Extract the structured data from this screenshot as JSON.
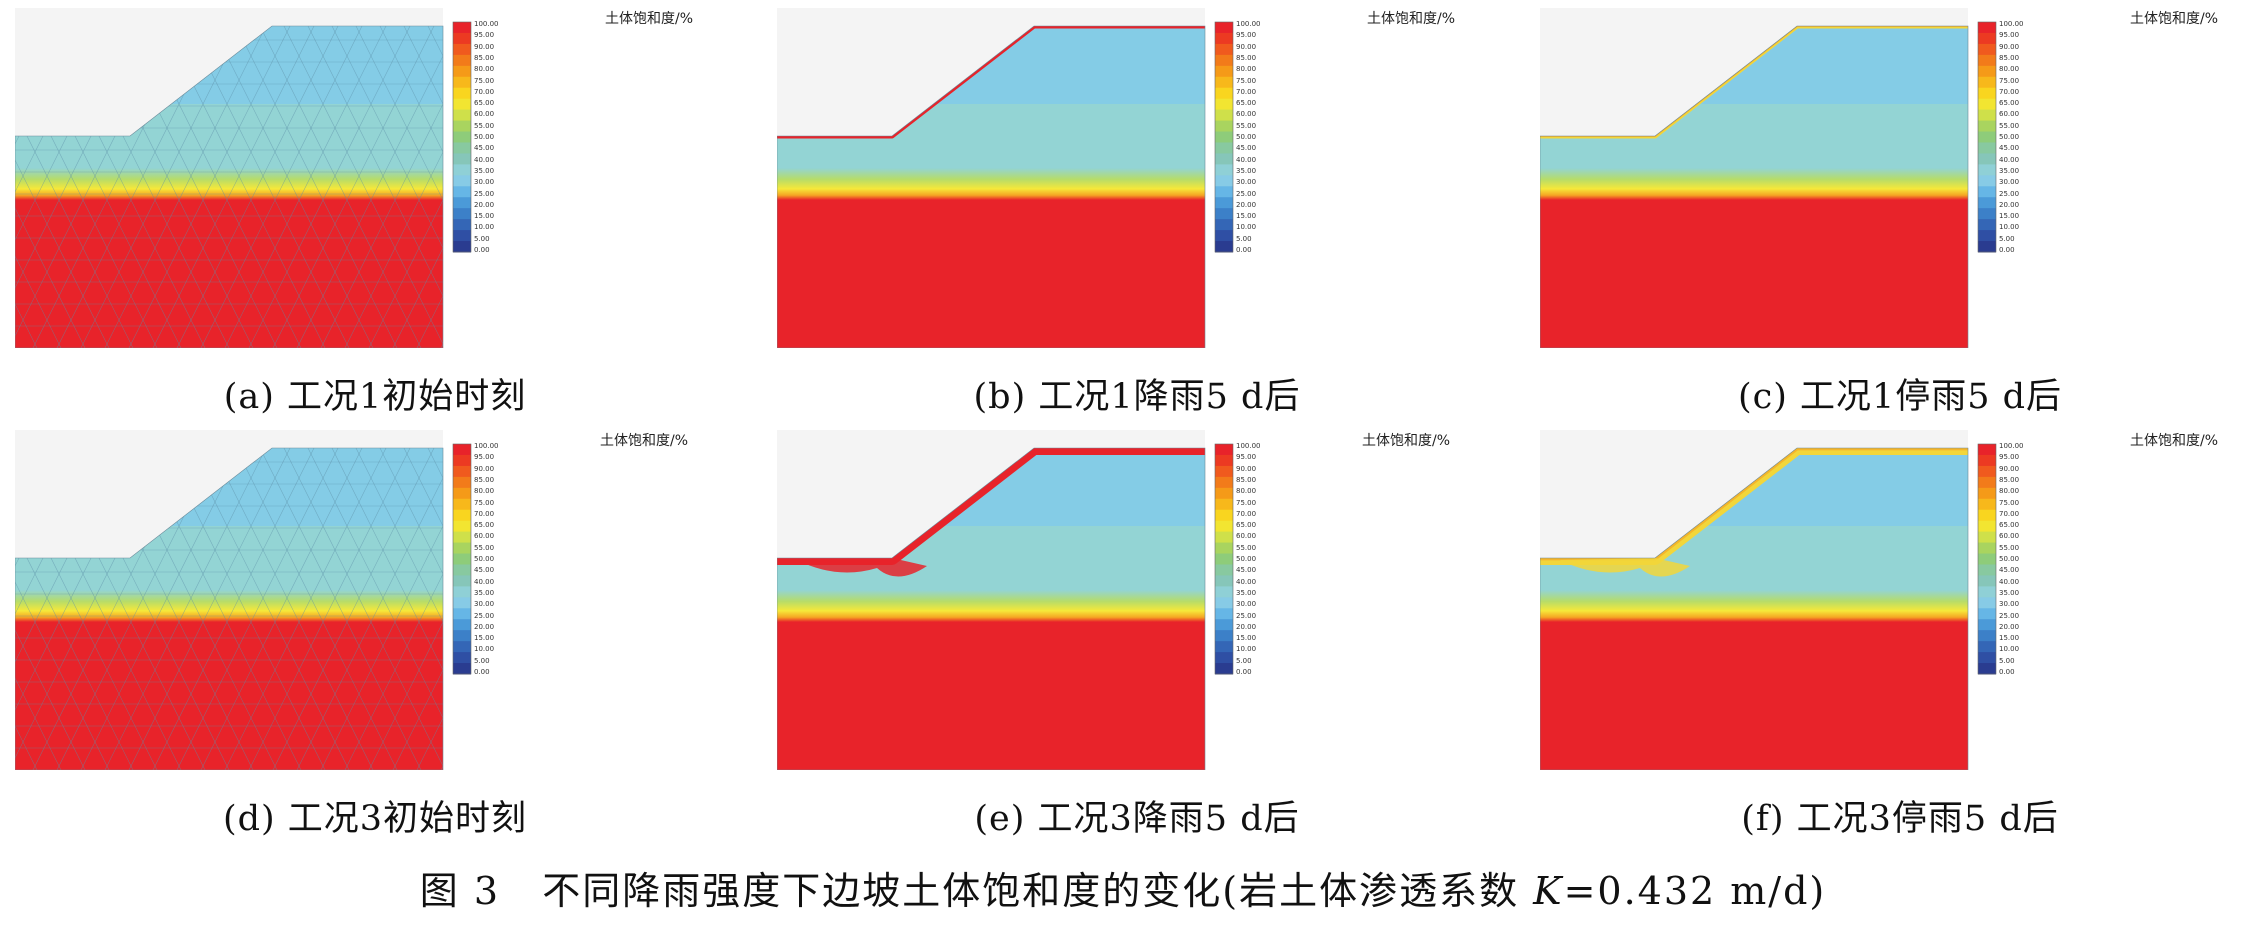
{
  "colorbar": {
    "title": "土体饱和度/%",
    "ticks": [
      "100.00",
      "95.00",
      "90.00",
      "85.00",
      "80.00",
      "75.00",
      "70.00",
      "65.00",
      "60.00",
      "55.00",
      "50.00",
      "45.00",
      "40.00",
      "35.00",
      "30.00",
      "25.00",
      "20.00",
      "15.00",
      "10.00",
      "5.00",
      "0.00"
    ],
    "colors": [
      "#e8232a",
      "#ec3a22",
      "#f05a1e",
      "#f27b1a",
      "#f59a18",
      "#f7b81b",
      "#f9d51f",
      "#f2e531",
      "#cfe04a",
      "#a9d45f",
      "#8ecc7a",
      "#88c9a0",
      "#86c6b9",
      "#8fd0d6",
      "#87cbe6",
      "#66b6e6",
      "#4b9ad8",
      "#3c80c8",
      "#3466b6",
      "#2f4fa4",
      "#2a3c90"
    ]
  },
  "colors": {
    "saturated": "#e8232a",
    "transition_yellow": "#f6e83a",
    "transition_green": "#b6dc6a",
    "mid_layer": "#93d4d4",
    "upper_layer": "#84cce6",
    "sky": "#f4f4f4",
    "wet_front_red": "#e8232a",
    "wet_front_yellow": "#f2d63a"
  },
  "panels": [
    {
      "id": "a",
      "caption": "(a) 工况1初始时刻",
      "mesh": true,
      "wetting": "none"
    },
    {
      "id": "b",
      "caption": "(b) 工况1降雨5 d后",
      "mesh": false,
      "wetting": "thin-red"
    },
    {
      "id": "c",
      "caption": "(c) 工况1停雨5 d后",
      "mesh": false,
      "wetting": "thin-yellow"
    },
    {
      "id": "d",
      "caption": "(d) 工况3初始时刻",
      "mesh": true,
      "wetting": "none"
    },
    {
      "id": "e",
      "caption": "(e) 工况3降雨5 d后",
      "mesh": false,
      "wetting": "thick-red"
    },
    {
      "id": "f",
      "caption": "(f) 工况3停雨5 d后",
      "mesh": false,
      "wetting": "thick-yellow"
    }
  ],
  "figure_caption": {
    "number": "图 3",
    "text_before": "不同降雨强度下边坡土体饱和度的变化(岩土体渗透系数 ",
    "symbol": "K",
    "text_after": "=0.432 m/d)"
  }
}
